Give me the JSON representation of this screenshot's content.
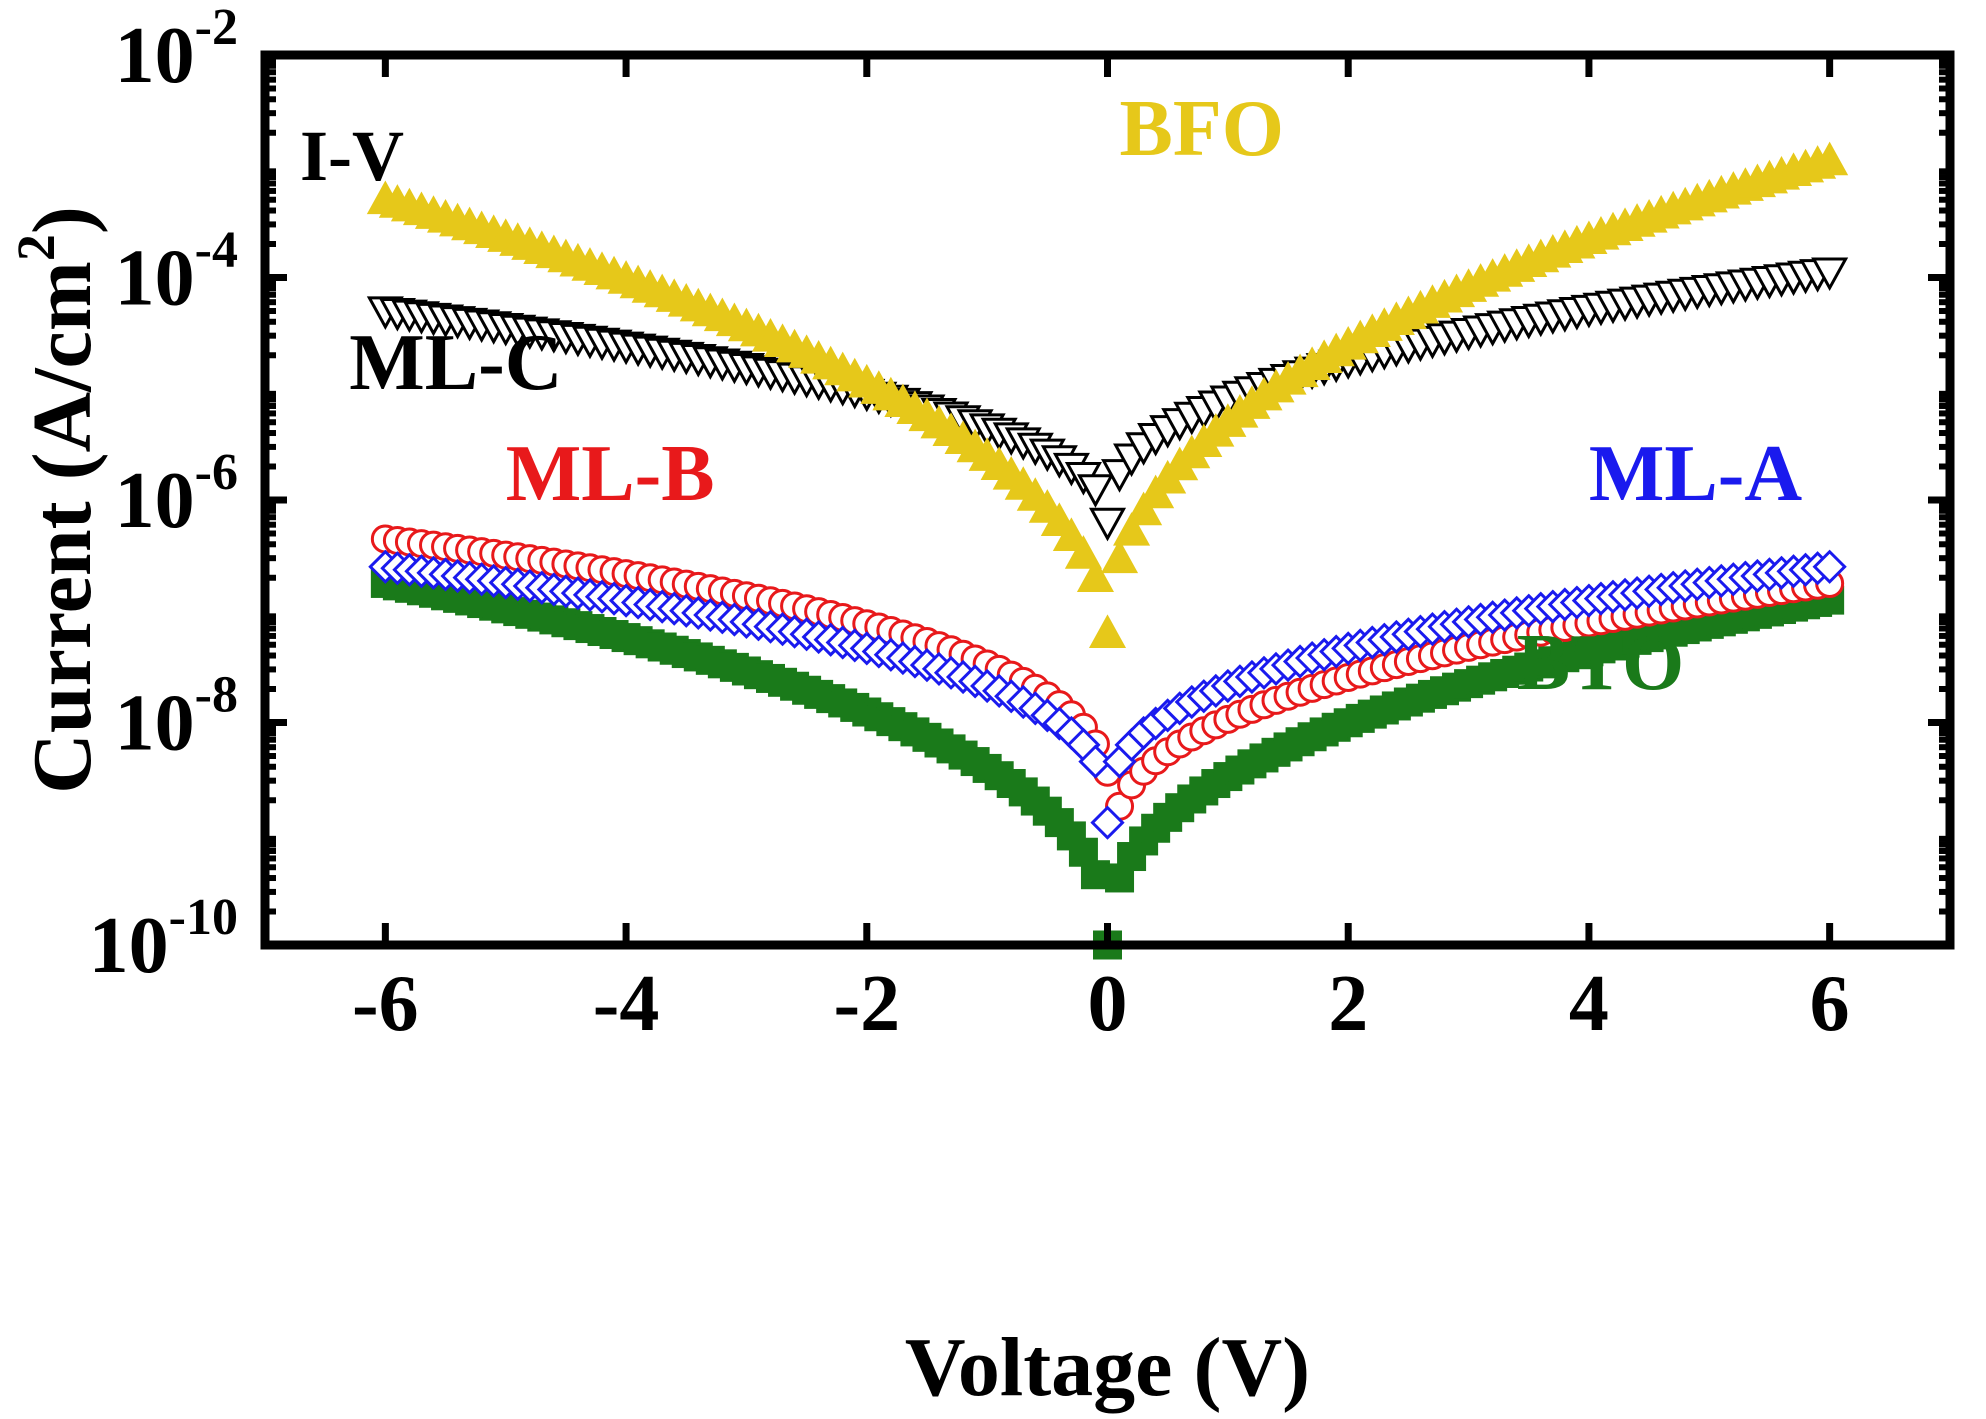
{
  "chart_data": {
    "type": "scatter",
    "title": "",
    "panel_label": "I-V",
    "xlabel": "Voltage (V)",
    "ylabel_main": "Current (A/cm",
    "ylabel_sup": "2",
    "ylabel_close": ")",
    "xlim": [
      -7,
      7
    ],
    "ylim_log10": [
      -10,
      -2
    ],
    "yscale": "log",
    "x_ticks": [
      -6,
      -4,
      -2,
      0,
      2,
      4,
      6
    ],
    "x_tick_labels": [
      "-6",
      "-4",
      "-2",
      "0",
      "2",
      "4",
      "6"
    ],
    "y_ticks": [
      {
        "base": "10",
        "exp": "-2",
        "value": -2
      },
      {
        "base": "10",
        "exp": "-4",
        "value": -4
      },
      {
        "base": "10",
        "exp": "-6",
        "value": -6
      },
      {
        "base": "10",
        "exp": "-8",
        "value": -8
      },
      {
        "base": "10",
        "exp": "-10",
        "value": -10
      }
    ],
    "series": [
      {
        "name": "BTO",
        "marker": "square",
        "color": "#1a7a1a",
        "fill": true,
        "min_x": 0.0,
        "min_log": -10.0,
        "neg": {
          "x": -6,
          "log": -6.75,
          "k": 0.4
        },
        "pos": {
          "x": 6,
          "log": -6.9,
          "k": 0.4
        }
      },
      {
        "name": "ML-B",
        "marker": "circle",
        "color": "#e8191b",
        "fill": false,
        "min_x": 0.05,
        "min_log": -9.1,
        "neg": {
          "x": -6,
          "log": -6.35,
          "k": 0.3
        },
        "pos": {
          "x": 6,
          "log": -6.75,
          "k": 0.4
        }
      },
      {
        "name": "ML-A",
        "marker": "diamond",
        "color": "#1a1aee",
        "fill": false,
        "min_x": 0.0,
        "min_log": -8.9,
        "neg": {
          "x": -6,
          "log": -6.6,
          "k": 0.35
        },
        "pos": {
          "x": 6,
          "log": -6.6,
          "k": 0.35
        }
      },
      {
        "name": "ML-C",
        "marker": "triangle-down",
        "color": "#000000",
        "fill": false,
        "min_x": 0.0,
        "min_log": -6.2,
        "neg": {
          "x": -6,
          "log": -4.3,
          "k": 0.45
        },
        "pos": {
          "x": 6,
          "log": -3.95,
          "k": 0.4
        }
      },
      {
        "name": "BFO",
        "marker": "triangle-up",
        "color": "#e6c81a",
        "fill": true,
        "min_x": 0.0,
        "min_log": -7.2,
        "neg": {
          "x": -6,
          "log": -3.3,
          "k": 0.5
        },
        "pos": {
          "x": 6,
          "log": -2.95,
          "k": 0.45
        }
      }
    ],
    "series_labels": [
      {
        "text": "BFO",
        "color": "#e6c81a",
        "at_x": 0.1,
        "at_log": -2.9
      },
      {
        "text": "ML-C",
        "color": "#000000",
        "at_x": -6.3,
        "at_log": -5.0
      },
      {
        "text": "ML-B",
        "color": "#e8191b",
        "at_x": -5.0,
        "at_log": -6.0
      },
      {
        "text": "ML-A",
        "color": "#1a1aee",
        "at_x": 4.0,
        "at_log": -6.0
      },
      {
        "text": "BTO",
        "color": "#1a7a1a",
        "at_x": 3.4,
        "at_log": -7.7
      }
    ]
  }
}
